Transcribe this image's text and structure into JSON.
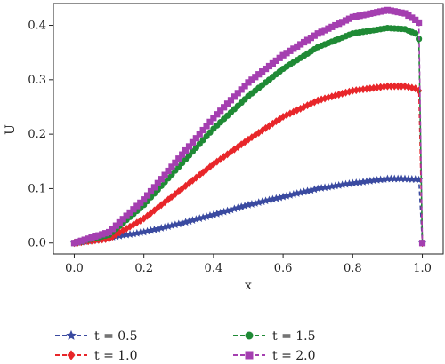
{
  "chart_data": {
    "type": "line",
    "xlabel": "x",
    "ylabel": "U",
    "xlim": [
      -0.06,
      1.06
    ],
    "ylim": [
      -0.02,
      0.44
    ],
    "xticks": [
      "0.0",
      "0.2",
      "0.4",
      "0.6",
      "0.8",
      "1.0"
    ],
    "yticks": [
      "0.0",
      "0.1",
      "0.2",
      "0.3",
      "0.4"
    ],
    "grid": false,
    "legend_position": "bottom",
    "x": [
      0,
      0.1,
      0.2,
      0.3,
      0.4,
      0.5,
      0.6,
      0.7,
      0.8,
      0.9,
      0.95,
      0.98,
      0.99,
      1.0
    ],
    "series": [
      {
        "name": "t = 0.5",
        "color": "#3a4aa0",
        "marker": "star",
        "values": [
          0,
          0.01,
          0.02,
          0.035,
          0.052,
          0.07,
          0.085,
          0.1,
          0.11,
          0.118,
          0.118,
          0.117,
          0.116,
          0
        ]
      },
      {
        "name": "t = 1.0",
        "color": "#e8262a",
        "marker": "diamond",
        "values": [
          0,
          0.008,
          0.045,
          0.095,
          0.145,
          0.19,
          0.232,
          0.262,
          0.28,
          0.288,
          0.288,
          0.284,
          0.28,
          0
        ]
      },
      {
        "name": "t = 1.5",
        "color": "#1f8a35",
        "marker": "circle",
        "values": [
          0,
          0.015,
          0.07,
          0.14,
          0.21,
          0.27,
          0.32,
          0.36,
          0.385,
          0.395,
          0.393,
          0.385,
          0.375,
          0
        ]
      },
      {
        "name": "t = 2.0",
        "color": "#a43fb0",
        "marker": "square",
        "values": [
          0,
          0.02,
          0.08,
          0.155,
          0.23,
          0.295,
          0.345,
          0.385,
          0.415,
          0.428,
          0.422,
          0.41,
          0.405,
          0
        ]
      }
    ]
  }
}
